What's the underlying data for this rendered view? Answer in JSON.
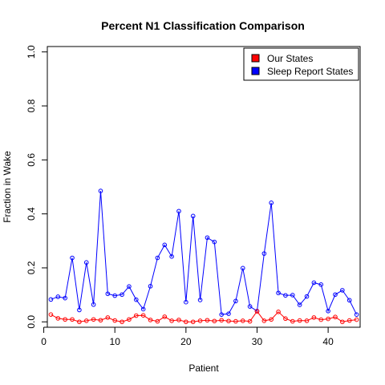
{
  "chart_data": {
    "type": "line",
    "title": "Percent N1 Classification Comparison",
    "xlabel": "Patient",
    "ylabel": "Fraction in Wake",
    "xlim": [
      0.5,
      44.5
    ],
    "ylim": [
      -0.02,
      1.02
    ],
    "xticks": [
      0,
      10,
      20,
      30,
      40
    ],
    "yticks": [
      0.0,
      0.2,
      0.4,
      0.6,
      0.8,
      1.0
    ],
    "xtick_labels": [
      "0",
      "10",
      "20",
      "30",
      "40"
    ],
    "ytick_labels": [
      "0.0",
      "0.2",
      "0.4",
      "0.6",
      "0.8",
      "1.0"
    ],
    "x": [
      1,
      2,
      3,
      4,
      5,
      6,
      7,
      8,
      9,
      10,
      11,
      12,
      13,
      14,
      15,
      16,
      17,
      18,
      19,
      20,
      21,
      22,
      23,
      24,
      25,
      26,
      27,
      28,
      29,
      30,
      31,
      32,
      33,
      34,
      35,
      36,
      37,
      38,
      39,
      40,
      41,
      42,
      43,
      44
    ],
    "series": [
      {
        "name": "Sleep Report States",
        "color": "#0000ff",
        "values": [
          0.083,
          0.093,
          0.088,
          0.237,
          0.044,
          0.22,
          0.064,
          0.485,
          0.104,
          0.097,
          0.101,
          0.131,
          0.082,
          0.047,
          0.132,
          0.237,
          0.285,
          0.242,
          0.41,
          0.073,
          0.392,
          0.081,
          0.312,
          0.296,
          0.027,
          0.03,
          0.077,
          0.199,
          0.057,
          0.04,
          0.253,
          0.441,
          0.107,
          0.098,
          0.099,
          0.063,
          0.094,
          0.145,
          0.138,
          0.04,
          0.101,
          0.117,
          0.08,
          0.027
        ]
      },
      {
        "name": "Our States",
        "color": "#ff0000",
        "values": [
          0.027,
          0.013,
          0.009,
          0.009,
          0.0,
          0.004,
          0.009,
          0.006,
          0.016,
          0.005,
          0.0,
          0.009,
          0.023,
          0.024,
          0.007,
          0.002,
          0.019,
          0.004,
          0.007,
          0.0,
          0.0,
          0.004,
          0.006,
          0.003,
          0.006,
          0.003,
          0.002,
          0.004,
          0.002,
          0.039,
          0.004,
          0.009,
          0.037,
          0.012,
          0.002,
          0.005,
          0.004,
          0.016,
          0.008,
          0.011,
          0.018,
          0.0,
          0.005,
          0.008
        ]
      }
    ],
    "legend": {
      "placement": "top-right",
      "entries": [
        {
          "label": "Our States",
          "color": "#ff0000"
        },
        {
          "label": "Sleep Report States",
          "color": "#0000ff"
        }
      ]
    },
    "grid": false,
    "marker": "open-circle"
  }
}
